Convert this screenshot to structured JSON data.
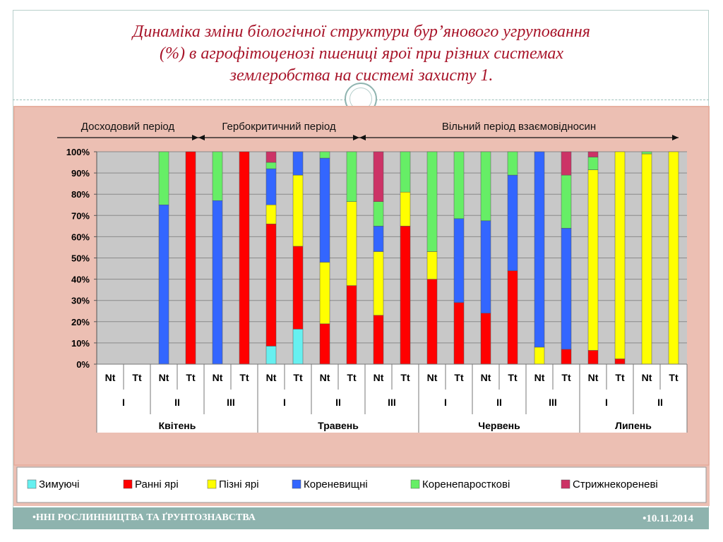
{
  "slide": {
    "title_lines": [
      "Динаміка зміни біологічної структури бур’янового угруповання",
      "(%) в агрофітоценозі пшениці ярої при різних системах",
      "землеробства на системі захисту 1."
    ],
    "footer_left": "•ННІ РОСЛИННИЦТВА ТА ҐРУНТОЗНАВСТВА",
    "footer_right": "•10.11.2014"
  },
  "chart_data": {
    "type": "bar",
    "stacked": true,
    "percent": true,
    "ylim": [
      0,
      100
    ],
    "yticks": [
      "0%",
      "10%",
      "20%",
      "30%",
      "40%",
      "50%",
      "60%",
      "70%",
      "80%",
      "90%",
      "100%"
    ],
    "grid": true,
    "legend_position": "bottom",
    "periods": [
      {
        "label": "Досходовий період",
        "from": 0,
        "to": 3
      },
      {
        "label": "Гербокритичний період",
        "from": 4,
        "to": 9
      },
      {
        "label": "Вільний період взаємовідносин",
        "from": 10,
        "to": 21
      }
    ],
    "categories": [
      "Nt",
      "Tt",
      "Nt",
      "Tt",
      "Nt",
      "Tt",
      "Nt",
      "Tt",
      "Nt",
      "Tt",
      "Nt",
      "Tt",
      "Nt",
      "Tt",
      "Nt",
      "Tt",
      "Nt",
      "Tt",
      "Nt",
      "Tt",
      "Nt",
      "Tt"
    ],
    "groups": [
      {
        "label": "I",
        "from": 0,
        "to": 1
      },
      {
        "label": "II",
        "from": 2,
        "to": 3
      },
      {
        "label": "III",
        "from": 4,
        "to": 5
      },
      {
        "label": "I",
        "from": 6,
        "to": 7
      },
      {
        "label": "II",
        "from": 8,
        "to": 9
      },
      {
        "label": "III",
        "from": 10,
        "to": 11
      },
      {
        "label": "I",
        "from": 12,
        "to": 13
      },
      {
        "label": "II",
        "from": 14,
        "to": 15
      },
      {
        "label": "III",
        "from": 16,
        "to": 17
      },
      {
        "label": "I",
        "from": 18,
        "to": 19
      },
      {
        "label": "II",
        "from": 20,
        "to": 21
      }
    ],
    "months": [
      {
        "label": "Квітень",
        "from": 0,
        "to": 5
      },
      {
        "label": "Травень",
        "from": 6,
        "to": 11
      },
      {
        "label": "Червень",
        "from": 12,
        "to": 17
      },
      {
        "label": "Липень",
        "from": 18,
        "to": 21
      }
    ],
    "series": [
      {
        "name": "Зимуючі",
        "color": "#66f0f0",
        "values": [
          0,
          0,
          0,
          0,
          0,
          0,
          8.5,
          16.5,
          0,
          0,
          0,
          0,
          0,
          0,
          0,
          0,
          0,
          0,
          0,
          0,
          0,
          0
        ]
      },
      {
        "name": "Ранні ярі",
        "color": "#ff0000",
        "values": [
          0,
          0,
          0,
          100,
          0,
          100,
          57.5,
          39,
          19,
          37,
          23,
          65,
          40,
          29,
          24,
          44,
          0,
          7,
          6.5,
          2.5,
          0,
          0
        ]
      },
      {
        "name": "Пізні ярі",
        "color": "#ffff00",
        "values": [
          0,
          0,
          0,
          0,
          0,
          0,
          9,
          33.5,
          29,
          39.5,
          30,
          16,
          13,
          0,
          0,
          0,
          8,
          0,
          85,
          97.5,
          99,
          100
        ]
      },
      {
        "name": "Кореневищні",
        "color": "#3366ff",
        "values": [
          0,
          0,
          75,
          0,
          77,
          0,
          17,
          11,
          49,
          0,
          12,
          0,
          0,
          39.5,
          43.5,
          45,
          92,
          57,
          0,
          0,
          0,
          0
        ]
      },
      {
        "name": "Коренепаросткові",
        "color": "#66ee66",
        "values": [
          0,
          0,
          25,
          0,
          23,
          0,
          3,
          0,
          3,
          23.5,
          11.5,
          19,
          47,
          31.5,
          32.5,
          11,
          0,
          25,
          6,
          0,
          1,
          0
        ]
      },
      {
        "name": "Стрижнекореневі",
        "color": "#cc3366",
        "values": [
          0,
          0,
          0,
          0,
          0,
          0,
          5,
          0,
          0,
          0,
          23.5,
          0,
          0,
          0,
          0,
          0,
          0,
          11,
          2.5,
          0,
          0,
          0
        ]
      }
    ]
  }
}
